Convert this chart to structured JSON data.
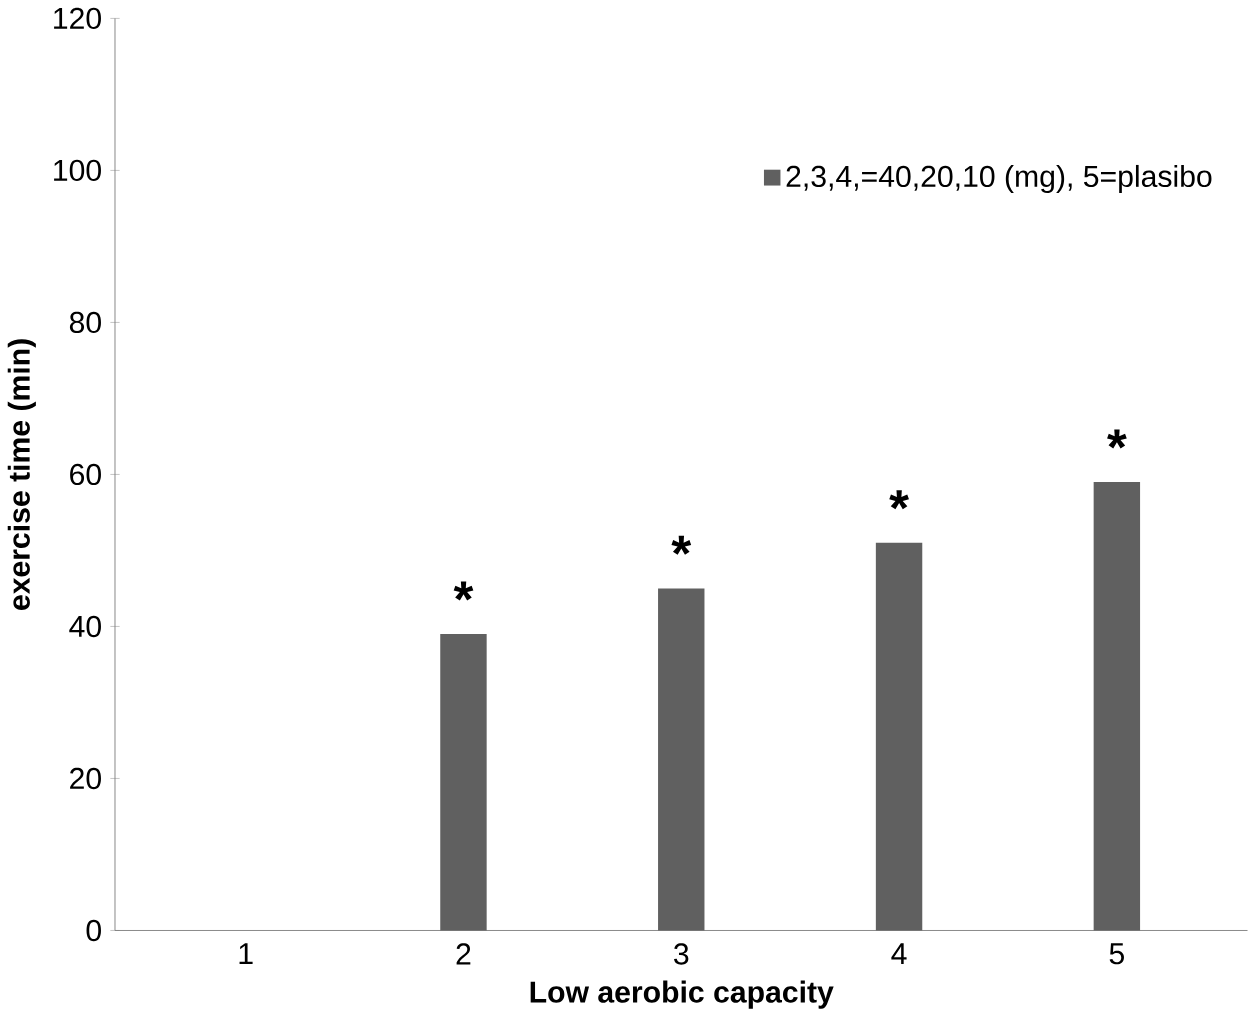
{
  "chart_data": {
    "type": "bar",
    "xlabel": "Low aerobic capacity",
    "ylabel": "exercise time (min)",
    "categories": [
      "1",
      "2",
      "3",
      "4",
      "5"
    ],
    "series": [
      {
        "name": "2,3,4,=40,20,10 (mg), 5=plasibo",
        "color": "#606060",
        "values": [
          null,
          39,
          45,
          51,
          59
        ]
      }
    ],
    "ylim": [
      0,
      120
    ],
    "yticks": [
      0,
      20,
      40,
      60,
      80,
      100,
      120
    ],
    "legend": "top right",
    "grid": false,
    "annotations": [
      {
        "text": "*",
        "x": "2",
        "y": 39
      },
      {
        "text": "*",
        "x": "3",
        "y": 45
      },
      {
        "text": "*",
        "x": "4",
        "y": 51
      },
      {
        "text": "*",
        "x": "5",
        "y": 59
      }
    ]
  }
}
